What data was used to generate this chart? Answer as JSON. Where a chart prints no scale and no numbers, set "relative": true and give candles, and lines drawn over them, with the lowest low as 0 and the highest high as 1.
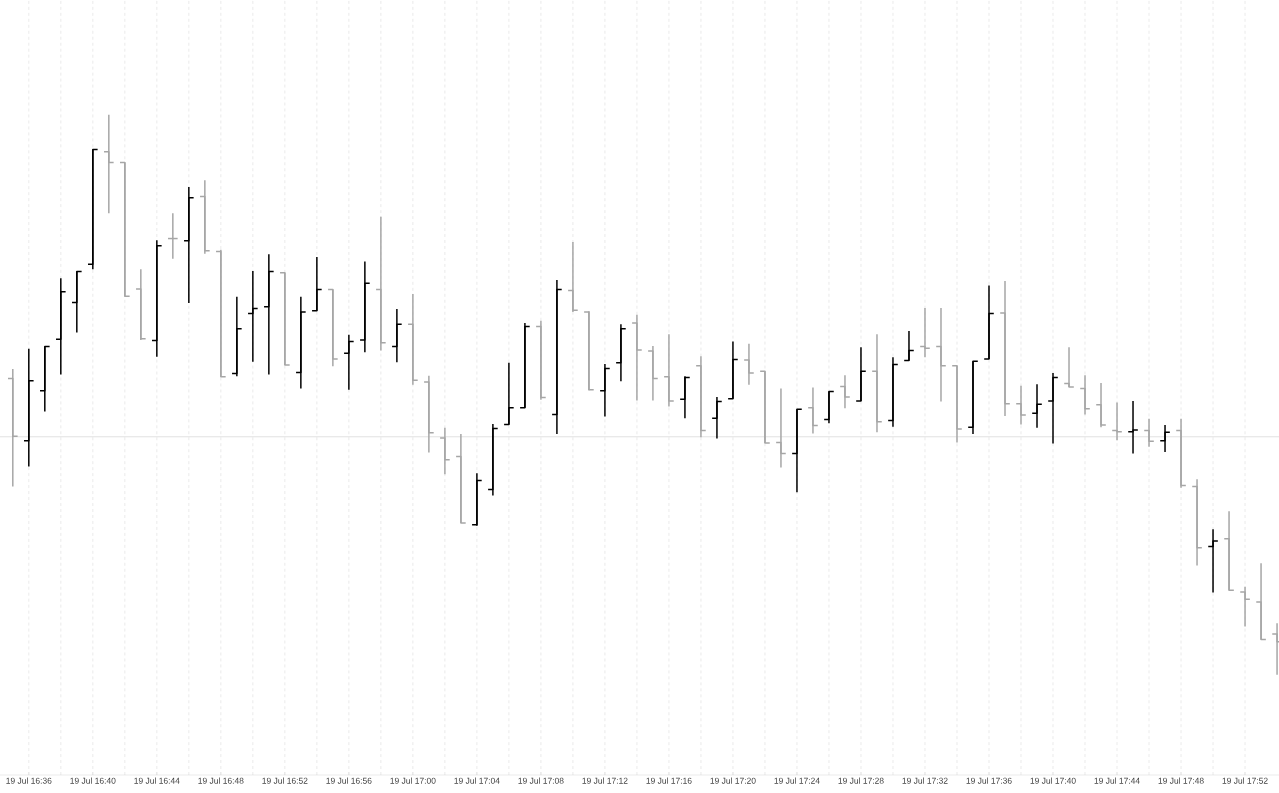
{
  "chart_data": {
    "type": "candlestick",
    "relative": true,
    "grid": true,
    "categories": [
      null,
      "19 Jul 16:36",
      null,
      null,
      null,
      "19 Jul 16:40",
      null,
      null,
      null,
      "19 Jul 16:44",
      null,
      null,
      null,
      "19 Jul 16:48",
      null,
      null,
      null,
      "19 Jul 16:52",
      null,
      null,
      null,
      "19 Jul 16:56",
      null,
      null,
      null,
      "19 Jul 17:00",
      null,
      null,
      null,
      "19 Jul 17:04",
      null,
      null,
      null,
      "19 Jul 17:08",
      null,
      null,
      null,
      "19 Jul 17:12",
      null,
      null,
      null,
      "19 Jul 17:16",
      null,
      null,
      null,
      "19 Jul 17:20",
      null,
      null,
      null,
      "19 Jul 17:24",
      null,
      null,
      null,
      "19 Jul 17:28",
      null,
      null,
      null,
      "19 Jul 17:32",
      null,
      null,
      null,
      "19 Jul 17:36",
      null,
      null,
      null,
      "19 Jul 17:40",
      null,
      null,
      null,
      "19 Jul 17:44",
      null,
      null,
      null,
      "19 Jul 17:48",
      null,
      null,
      null,
      "19 Jul 17:52",
      null,
      null
    ],
    "ohlc": [
      [
        0.529,
        0.546,
        0.336,
        0.426
      ],
      [
        0.418,
        0.582,
        0.372,
        0.525
      ],
      [
        0.507,
        0.586,
        0.47,
        0.586
      ],
      [
        0.599,
        0.708,
        0.536,
        0.684
      ],
      [
        0.665,
        0.72,
        0.611,
        0.72
      ],
      [
        0.733,
        0.938,
        0.724,
        0.938
      ],
      [
        0.934,
        1.0,
        0.824,
        0.915
      ],
      [
        0.915,
        0.915,
        0.676,
        0.676
      ],
      [
        0.689,
        0.724,
        0.598,
        0.6
      ],
      [
        0.597,
        0.776,
        0.568,
        0.766
      ],
      [
        0.779,
        0.824,
        0.743,
        0.779
      ],
      [
        0.775,
        0.871,
        0.664,
        0.852
      ],
      [
        0.854,
        0.883,
        0.752,
        0.757
      ],
      [
        0.756,
        0.759,
        0.532,
        0.532
      ],
      [
        0.538,
        0.675,
        0.533,
        0.618
      ],
      [
        0.645,
        0.721,
        0.559,
        0.654
      ],
      [
        0.657,
        0.751,
        0.536,
        0.72
      ],
      [
        0.718,
        0.718,
        0.553,
        0.553
      ],
      [
        0.54,
        0.675,
        0.511,
        0.648
      ],
      [
        0.65,
        0.746,
        0.65,
        0.688
      ],
      [
        0.688,
        0.688,
        0.551,
        0.564
      ],
      [
        0.574,
        0.607,
        0.509,
        0.595
      ],
      [
        0.598,
        0.738,
        0.576,
        0.699
      ],
      [
        0.688,
        0.818,
        0.579,
        0.593
      ],
      [
        0.586,
        0.653,
        0.558,
        0.626
      ],
      [
        0.626,
        0.68,
        0.518,
        0.526
      ],
      [
        0.523,
        0.534,
        0.397,
        0.432
      ],
      [
        0.423,
        0.441,
        0.358,
        0.384
      ],
      [
        0.39,
        0.43,
        0.271,
        0.271
      ],
      [
        0.268,
        0.36,
        0.266,
        0.347
      ],
      [
        0.331,
        0.448,
        0.32,
        0.44
      ],
      [
        0.447,
        0.557,
        0.447,
        0.477
      ],
      [
        0.477,
        0.628,
        0.477,
        0.622
      ],
      [
        0.622,
        0.632,
        0.491,
        0.495
      ],
      [
        0.465,
        0.705,
        0.43,
        0.688
      ],
      [
        0.686,
        0.773,
        0.648,
        0.651
      ],
      [
        0.648,
        0.649,
        0.508,
        0.509
      ],
      [
        0.507,
        0.555,
        0.461,
        0.547
      ],
      [
        0.557,
        0.626,
        0.524,
        0.618
      ],
      [
        0.628,
        0.643,
        0.49,
        0.58
      ],
      [
        0.578,
        0.587,
        0.49,
        0.529
      ],
      [
        0.532,
        0.608,
        0.479,
        0.489
      ],
      [
        0.492,
        0.533,
        0.458,
        0.531
      ],
      [
        0.552,
        0.569,
        0.424,
        0.436
      ],
      [
        0.458,
        0.496,
        0.422,
        0.488
      ],
      [
        0.493,
        0.595,
        0.493,
        0.563
      ],
      [
        0.562,
        0.591,
        0.518,
        0.539
      ],
      [
        0.542,
        0.542,
        0.414,
        0.414
      ],
      [
        0.415,
        0.511,
        0.37,
        0.395
      ],
      [
        0.395,
        0.474,
        0.326,
        0.474
      ],
      [
        0.477,
        0.513,
        0.431,
        0.445
      ],
      [
        0.456,
        0.506,
        0.449,
        0.506
      ],
      [
        0.515,
        0.535,
        0.476,
        0.496
      ],
      [
        0.489,
        0.585,
        0.489,
        0.542
      ],
      [
        0.542,
        0.608,
        0.433,
        0.452
      ],
      [
        0.454,
        0.567,
        0.443,
        0.554
      ],
      [
        0.561,
        0.614,
        0.561,
        0.579
      ],
      [
        0.586,
        0.655,
        0.567,
        0.583
      ],
      [
        0.586,
        0.655,
        0.488,
        0.552
      ],
      [
        0.552,
        0.552,
        0.415,
        0.439
      ],
      [
        0.442,
        0.56,
        0.43,
        0.56
      ],
      [
        0.564,
        0.695,
        0.564,
        0.645
      ],
      [
        0.646,
        0.703,
        0.462,
        0.484
      ],
      [
        0.484,
        0.516,
        0.447,
        0.464
      ],
      [
        0.467,
        0.519,
        0.441,
        0.483
      ],
      [
        0.489,
        0.539,
        0.413,
        0.531
      ],
      [
        0.52,
        0.585,
        0.514,
        0.514
      ],
      [
        0.511,
        0.535,
        0.465,
        0.475
      ],
      [
        0.482,
        0.521,
        0.442,
        0.446
      ],
      [
        0.436,
        0.486,
        0.419,
        0.434
      ],
      [
        0.434,
        0.489,
        0.395,
        0.437
      ],
      [
        0.436,
        0.457,
        0.407,
        0.417
      ],
      [
        0.418,
        0.446,
        0.398,
        0.433
      ],
      [
        0.436,
        0.457,
        0.334,
        0.338
      ],
      [
        0.336,
        0.349,
        0.195,
        0.227
      ],
      [
        0.229,
        0.26,
        0.147,
        0.239
      ],
      [
        0.243,
        0.292,
        0.151,
        0.151
      ],
      [
        0.148,
        0.157,
        0.086,
        0.135
      ],
      [
        0.13,
        0.199,
        0.063,
        0.063
      ],
      [
        0.073,
        0.092,
        0.0,
        0.059
      ]
    ],
    "colors": [
      "#a6a6a6",
      "#000000",
      "#000000",
      "#000000",
      "#000000",
      "#000000",
      "#a6a6a6",
      "#a6a6a6",
      "#a6a6a6",
      "#000000",
      "#a6a6a6",
      "#000000",
      "#a6a6a6",
      "#a6a6a6",
      "#000000",
      "#000000",
      "#000000",
      "#a6a6a6",
      "#000000",
      "#000000",
      "#a6a6a6",
      "#000000",
      "#000000",
      "#a6a6a6",
      "#000000",
      "#a6a6a6",
      "#a6a6a6",
      "#a6a6a6",
      "#a6a6a6",
      "#000000",
      "#000000",
      "#000000",
      "#000000",
      "#a6a6a6",
      "#000000",
      "#a6a6a6",
      "#a6a6a6",
      "#000000",
      "#000000",
      "#a6a6a6",
      "#a6a6a6",
      "#a6a6a6",
      "#000000",
      "#a6a6a6",
      "#000000",
      "#000000",
      "#a6a6a6",
      "#a6a6a6",
      "#a6a6a6",
      "#000000",
      "#a6a6a6",
      "#000000",
      "#a6a6a6",
      "#000000",
      "#a6a6a6",
      "#000000",
      "#000000",
      "#a6a6a6",
      "#a6a6a6",
      "#a6a6a6",
      "#000000",
      "#000000",
      "#a6a6a6",
      "#a6a6a6",
      "#000000",
      "#000000",
      "#a6a6a6",
      "#a6a6a6",
      "#a6a6a6",
      "#a6a6a6",
      "#000000",
      "#a6a6a6",
      "#000000",
      "#a6a6a6",
      "#a6a6a6",
      "#000000",
      "#a6a6a6",
      "#a6a6a6",
      "#a6a6a6",
      "#a6a6a6"
    ],
    "ref_lines": [
      {
        "axis": "y",
        "value": 0.425,
        "color": "#d9d9d9"
      }
    ]
  }
}
